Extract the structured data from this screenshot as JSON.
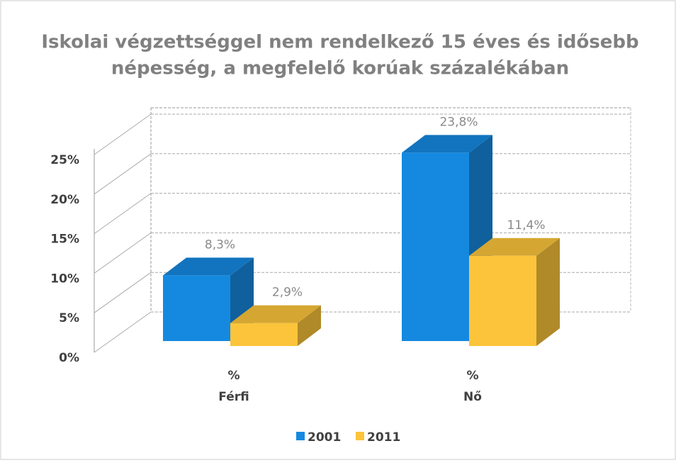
{
  "chart_data": {
    "type": "bar3d",
    "title": [
      "Iskolai végzettséggel nem rendelkező 15 éves és idősebb",
      "népesség, a megfelelő korúak százalékában"
    ],
    "categories": [
      [
        "%",
        "Férfi"
      ],
      [
        "%",
        "Nő"
      ]
    ],
    "series": [
      {
        "name": "2001",
        "color": "#1589e0",
        "values": [
          8.3,
          23.8
        ],
        "value_labels": [
          "8,3%",
          "23,8%"
        ]
      },
      {
        "name": "2011",
        "color": "#fbc43b",
        "values": [
          2.9,
          11.4
        ],
        "value_labels": [
          "2,9%",
          "11,4%"
        ]
      }
    ],
    "ylim": [
      0,
      25
    ],
    "yticks": [
      {
        "value": 0,
        "label": "0%"
      },
      {
        "value": 5,
        "label": "5%"
      },
      {
        "value": 10,
        "label": "10%"
      },
      {
        "value": 15,
        "label": "15%"
      },
      {
        "value": 20,
        "label": "20%"
      },
      {
        "value": 25,
        "label": "25%"
      }
    ],
    "grid": true,
    "legend": "bottom"
  }
}
